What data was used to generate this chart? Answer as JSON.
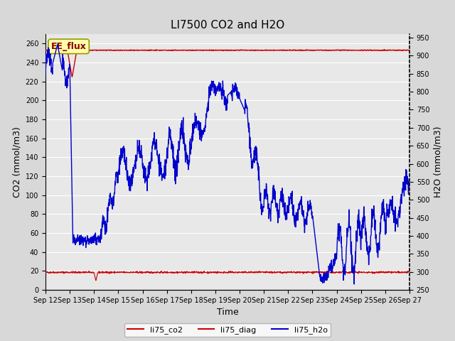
{
  "title": "LI7500 CO2 and H2O",
  "xlabel": "Time",
  "ylabel_left": "CO2 (mmol/m3)",
  "ylabel_right": "H2O (mmol/m3)",
  "ylim_left": [
    0,
    270
  ],
  "ylim_right": [
    250,
    960
  ],
  "yticks_left": [
    0,
    20,
    40,
    60,
    80,
    100,
    120,
    140,
    160,
    180,
    200,
    220,
    240,
    260
  ],
  "yticks_right": [
    250,
    300,
    350,
    400,
    450,
    500,
    550,
    600,
    650,
    700,
    750,
    800,
    850,
    900,
    950
  ],
  "xtick_labels": [
    "Sep 12",
    "Sep 13",
    "Sep 14",
    "Sep 15",
    "Sep 16",
    "Sep 17",
    "Sep 18",
    "Sep 19",
    "Sep 20",
    "Sep 21",
    "Sep 22",
    "Sep 23",
    "Sep 24",
    "Sep 25",
    "Sep 26",
    "Sep 27"
  ],
  "bg_color": "#d8d8d8",
  "plot_bg_color": "#e8e8e8",
  "co2_color": "#cc0000",
  "diag_color": "#cc0000",
  "h2o_color": "#0000cc",
  "annotation_text": "EE_flux",
  "annotation_bg": "#ffffaa",
  "annotation_border": "#999900",
  "title_fontsize": 11,
  "axis_label_fontsize": 9,
  "tick_fontsize": 7,
  "legend_fontsize": 8
}
